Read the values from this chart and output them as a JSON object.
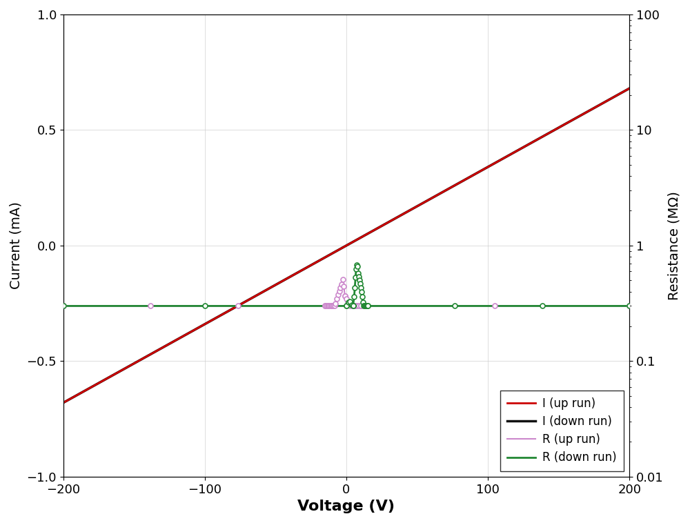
{
  "xlim": [
    -200,
    200
  ],
  "ylim_left": [
    -1,
    1
  ],
  "ylim_right": [
    0.01,
    100
  ],
  "xlabel": "Voltage (V)",
  "ylabel_left": "Current (mA)",
  "ylabel_right": "Resistance (MΩ)",
  "xticks": [
    -200,
    -100,
    0,
    100,
    200
  ],
  "yticks_left": [
    -1,
    -0.5,
    0,
    0.5,
    1
  ],
  "colors": {
    "I_up": "#cc0000",
    "I_down": "#111111",
    "R_up": "#cc88cc",
    "R_down": "#228833"
  },
  "legend_labels": [
    "I (up run)",
    "I (down run)",
    "R (up run)",
    "R (down run)"
  ],
  "I_slope": 0.0034,
  "R_flat": 0.3,
  "background_color": "#ffffff",
  "grid_color": "#cccccc"
}
